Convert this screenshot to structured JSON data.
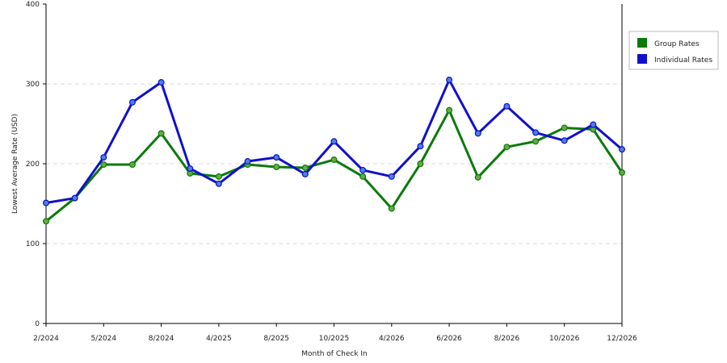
{
  "chart_data": {
    "type": "line",
    "xlabel": "Month of Check In",
    "ylabel": "Lowest Average Rate (USD)",
    "ylim": [
      0,
      400
    ],
    "yticks": [
      0,
      100,
      200,
      300,
      400
    ],
    "grid": "horizontal dashed",
    "legend_position": "right",
    "x_tick_labels": [
      {
        "index": 0,
        "label": "2/2024"
      },
      {
        "index": 2,
        "label": "5/2024"
      },
      {
        "index": 4,
        "label": "8/2024"
      },
      {
        "index": 6,
        "label": "4/2025"
      },
      {
        "index": 8,
        "label": "8/2025"
      },
      {
        "index": 10,
        "label": "10/2025"
      },
      {
        "index": 12,
        "label": "4/2026"
      },
      {
        "index": 14,
        "label": "6/2026"
      },
      {
        "index": 16,
        "label": "8/2026"
      },
      {
        "index": 18,
        "label": "10/2026"
      },
      {
        "index": 20,
        "label": "12/2026"
      }
    ],
    "series": [
      {
        "name": "Group Rates",
        "color": "#0a7a0a",
        "marker_color": "#66aa44",
        "values": [
          128,
          157,
          199,
          199,
          238,
          188,
          184,
          199,
          196,
          195,
          205,
          184,
          144,
          200,
          267,
          183,
          221,
          228,
          245,
          243,
          189
        ]
      },
      {
        "name": "Individual Rates",
        "color": "#1010cc",
        "marker_color": "#4f7fdf",
        "values": [
          151,
          157,
          208,
          277,
          302,
          194,
          175,
          203,
          208,
          187,
          228,
          192,
          184,
          222,
          305,
          238,
          272,
          239,
          229,
          249,
          218
        ]
      }
    ]
  }
}
